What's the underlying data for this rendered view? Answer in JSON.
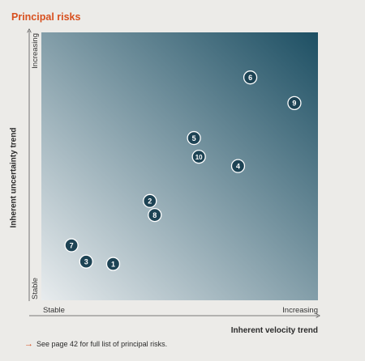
{
  "title": "Principal risks",
  "footnote": {
    "arrow": "→",
    "text": "See page 42 for full list of principal risks."
  },
  "colors": {
    "title": "#d8501f",
    "gradient_low": "#e8ecee",
    "gradient_high": "#1d4f63",
    "marker_fill": "#1d4354",
    "marker_stroke": "#ffffff"
  },
  "chart_data": {
    "type": "scatter",
    "title": "Principal risks",
    "xlabel": "Inherent velocity trend",
    "ylabel": "Inherent uncertainty trend",
    "xlim": [
      0,
      100
    ],
    "ylim": [
      0,
      100
    ],
    "grid": false,
    "x_ticks": [
      {
        "label": "Stable",
        "value": 0
      },
      {
        "label": "Increasing",
        "value": 100
      }
    ],
    "y_ticks": [
      {
        "label": "Stable",
        "value": 0
      },
      {
        "label": "Increasing",
        "value": 100
      }
    ],
    "points": [
      {
        "label": "1",
        "x": 23,
        "y": 9
      },
      {
        "label": "2",
        "x": 38,
        "y": 36
      },
      {
        "label": "3",
        "x": 12,
        "y": 10
      },
      {
        "label": "4",
        "x": 74,
        "y": 51
      },
      {
        "label": "5",
        "x": 56,
        "y": 63
      },
      {
        "label": "6",
        "x": 79,
        "y": 89
      },
      {
        "label": "7",
        "x": 6,
        "y": 17
      },
      {
        "label": "8",
        "x": 40,
        "y": 30
      },
      {
        "label": "9",
        "x": 97,
        "y": 78
      },
      {
        "label": "10",
        "x": 58,
        "y": 55
      }
    ]
  }
}
